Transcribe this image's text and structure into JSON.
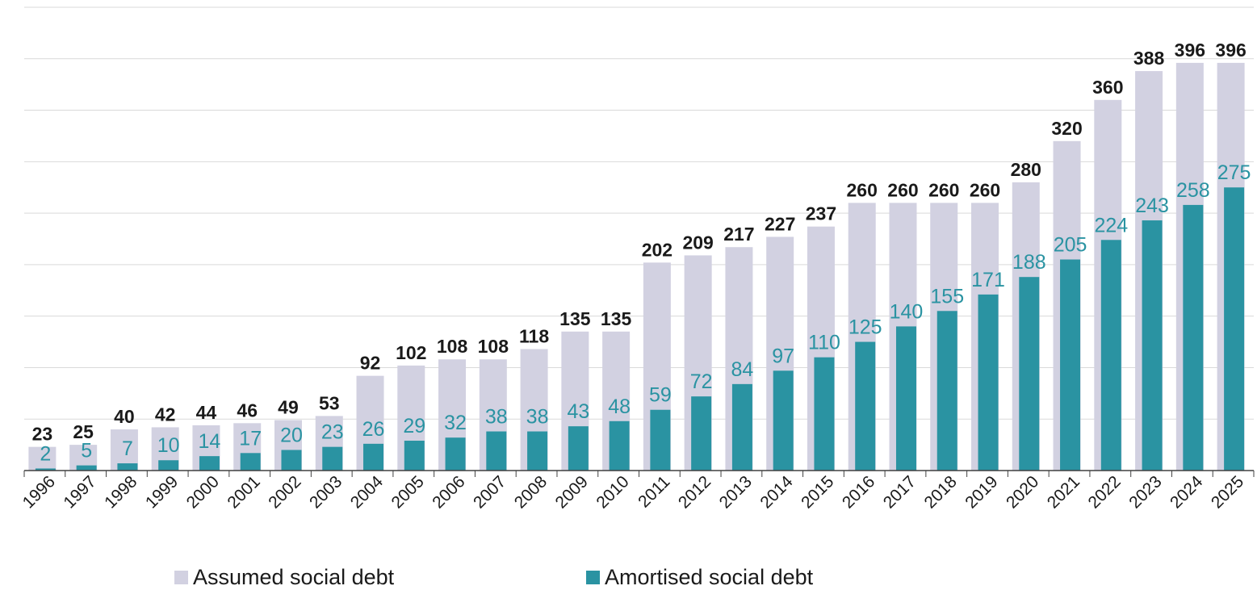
{
  "chart_data": {
    "type": "bar",
    "title": "",
    "xlabel": "",
    "ylabel": "",
    "ylim": [
      0,
      450
    ],
    "grid": true,
    "legend_position": "bottom",
    "categories": [
      "1996",
      "1997",
      "1998",
      "1999",
      "2000",
      "2001",
      "2002",
      "2003",
      "2004",
      "2005",
      "2006",
      "2007",
      "2008",
      "2009",
      "2010",
      "2011",
      "2012",
      "2013",
      "2014",
      "2015",
      "2016",
      "2017",
      "2018",
      "2019",
      "2020",
      "2021",
      "2022",
      "2023",
      "2024",
      "2025"
    ],
    "series": [
      {
        "name": "Assumed social debt",
        "color": "#d2d1e1",
        "label_color": "#1a1a1a",
        "values": [
          23,
          25,
          40,
          42,
          44,
          46,
          49,
          53,
          92,
          102,
          108,
          108,
          118,
          135,
          135,
          202,
          209,
          217,
          227,
          237,
          260,
          260,
          260,
          260,
          280,
          320,
          360,
          388,
          396,
          396
        ]
      },
      {
        "name": "Amortised social debt",
        "color": "#2a93a2",
        "label_color": "#2a93a2",
        "values": [
          2,
          5,
          7,
          10,
          14,
          17,
          20,
          23,
          26,
          29,
          32,
          38,
          38,
          43,
          48,
          59,
          72,
          84,
          97,
          110,
          125,
          140,
          155,
          171,
          188,
          205,
          224,
          243,
          258,
          275
        ]
      }
    ]
  }
}
